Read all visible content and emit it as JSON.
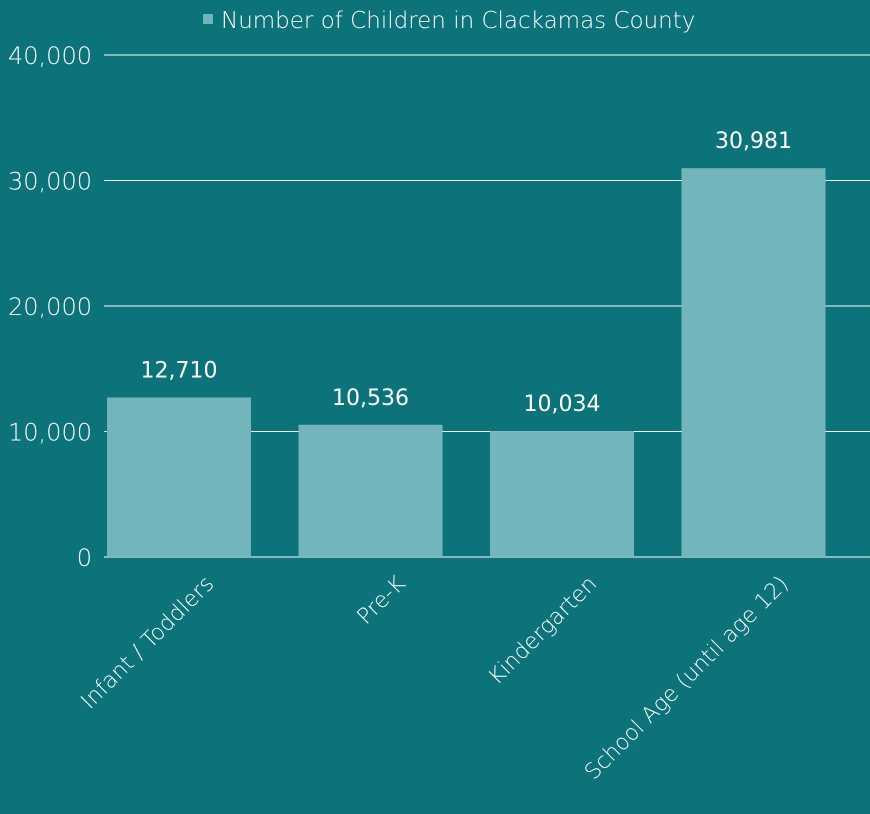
{
  "colors": {
    "background": "#0d737b",
    "bar": "#72b6bc",
    "gridline": "#ffffff",
    "text": "#ffffff"
  },
  "chart_data": {
    "type": "bar",
    "title": "",
    "xlabel": "",
    "ylabel": "",
    "legend": {
      "position": "top",
      "entries": [
        "Number of Children in Clackamas County"
      ]
    },
    "grid": true,
    "ylim": [
      0,
      40000
    ],
    "yticks": [
      0,
      10000,
      20000,
      30000,
      40000
    ],
    "ytick_labels": [
      "0",
      "10,000",
      "20,000",
      "30,000",
      "40,000"
    ],
    "categories": [
      "Infant / Toddlers",
      "Pre-K",
      "Kindergarten",
      "School Age (until age 12)"
    ],
    "series": [
      {
        "name": "Number of Children in Clackamas County",
        "values": [
          12710,
          10536,
          10034,
          30981
        ],
        "data_labels": [
          "12,710",
          "10,536",
          "10,034",
          "30,981"
        ]
      }
    ]
  }
}
